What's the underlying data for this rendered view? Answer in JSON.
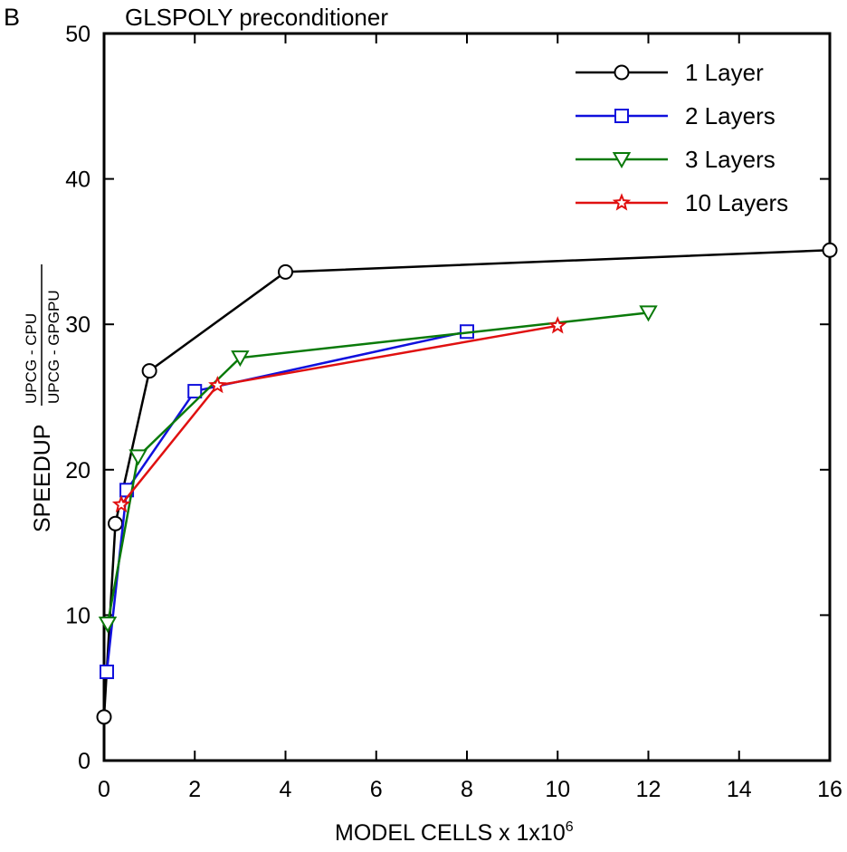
{
  "panel_label": "B",
  "chart_data": {
    "type": "line",
    "title": "GLSPOLY preconditioner",
    "xlabel": {
      "main": "MODEL CELLS x 1x10",
      "sup": "6"
    },
    "ylabel": {
      "main": "SPEEDUP",
      "numerator": "UPCG - CPU",
      "denominator": "UPCG - GPGPU"
    },
    "xlim": [
      0,
      16
    ],
    "ylim": [
      0,
      50
    ],
    "xticks": [
      0,
      2,
      4,
      6,
      8,
      10,
      12,
      14,
      16
    ],
    "yticks": [
      0,
      10,
      20,
      30,
      40,
      50
    ],
    "grid": false,
    "legend_position": "top-right",
    "series": [
      {
        "name": "1 Layer",
        "color": "#000000",
        "marker": "circle",
        "points": [
          [
            0.0,
            3.0
          ],
          [
            0.25,
            16.3
          ],
          [
            1.0,
            26.8
          ],
          [
            4.0,
            33.6
          ],
          [
            16.0,
            35.1
          ]
        ]
      },
      {
        "name": "2 Layers",
        "color": "#1010dd",
        "marker": "square",
        "points": [
          [
            0.06,
            6.1
          ],
          [
            0.5,
            18.6
          ],
          [
            2.0,
            25.4
          ],
          [
            8.0,
            29.5
          ]
        ]
      },
      {
        "name": "3 Layers",
        "color": "#0a7a0a",
        "marker": "triangle-down",
        "points": [
          [
            0.08,
            9.4
          ],
          [
            0.75,
            20.9
          ],
          [
            3.0,
            27.7
          ],
          [
            12.0,
            30.8
          ]
        ]
      },
      {
        "name": "10 Layers",
        "color": "#e01010",
        "marker": "star",
        "points": [
          [
            0.38,
            17.6
          ],
          [
            2.5,
            25.8
          ],
          [
            10.0,
            29.9
          ]
        ]
      }
    ]
  }
}
